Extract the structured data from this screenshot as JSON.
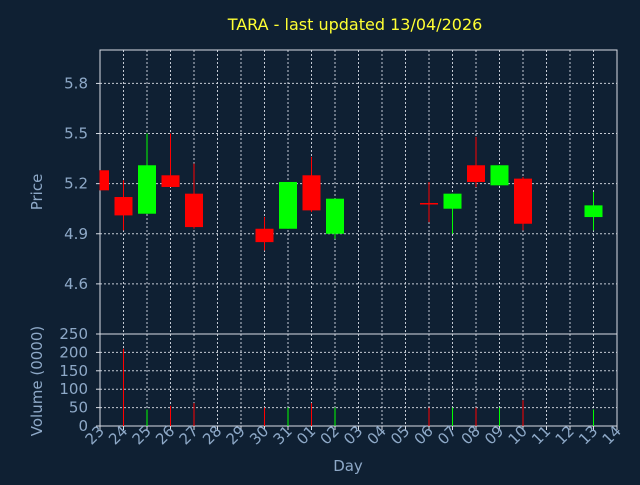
{
  "chart_data": {
    "type": "candlestick",
    "title": "TARA - last updated 13/04/2026",
    "xlabel": "Day",
    "price_panel": {
      "ylabel": "Price",
      "ylim": [
        4.3,
        6.0
      ],
      "yticks": [
        "4.6",
        "4.9",
        "5.2",
        "5.5",
        "5.8"
      ],
      "grid": true
    },
    "volume_panel": {
      "ylabel": "Volume (0000)",
      "ylim": [
        0,
        250
      ],
      "yticks": [
        "0",
        "50",
        "100",
        "150",
        "200",
        "250"
      ],
      "grid": true
    },
    "x_ticks": [
      "23",
      "24",
      "25",
      "26",
      "27",
      "28",
      "29",
      "30",
      "31",
      "01",
      "02",
      "03",
      "04",
      "05",
      "06",
      "07",
      "08",
      "09",
      "10",
      "11",
      "12",
      "13",
      "14"
    ],
    "candles": [
      {
        "day": "23",
        "open": 5.28,
        "high": 5.28,
        "low": 5.16,
        "close": 5.16,
        "volume": 0
      },
      {
        "day": "24",
        "open": 5.12,
        "high": 5.22,
        "low": 4.92,
        "close": 5.01,
        "volume": 210
      },
      {
        "day": "25",
        "open": 5.02,
        "high": 5.5,
        "low": 5.02,
        "close": 5.31,
        "volume": 45
      },
      {
        "day": "26",
        "open": 5.25,
        "high": 5.5,
        "low": 5.18,
        "close": 5.18,
        "volume": 55
      },
      {
        "day": "27",
        "open": 5.14,
        "high": 5.32,
        "low": 4.93,
        "close": 4.94,
        "volume": 62
      },
      {
        "day": "30",
        "open": 4.93,
        "high": 5.0,
        "low": 4.8,
        "close": 4.85,
        "volume": 50
      },
      {
        "day": "31",
        "open": 4.93,
        "high": 5.21,
        "low": 4.93,
        "close": 5.21,
        "volume": 50
      },
      {
        "day": "01",
        "open": 5.25,
        "high": 5.36,
        "low": 5.03,
        "close": 5.04,
        "volume": 62
      },
      {
        "day": "02",
        "open": 4.9,
        "high": 5.11,
        "low": 4.87,
        "close": 5.11,
        "volume": 50
      },
      {
        "day": "06",
        "open": 5.08,
        "high": 5.21,
        "low": 4.97,
        "close": 5.08,
        "volume": 50
      },
      {
        "day": "07",
        "open": 5.05,
        "high": 5.14,
        "low": 4.9,
        "close": 5.14,
        "volume": 50
      },
      {
        "day": "08",
        "open": 5.31,
        "high": 5.48,
        "low": 5.18,
        "close": 5.21,
        "volume": 50
      },
      {
        "day": "09",
        "open": 5.19,
        "high": 5.31,
        "low": 5.19,
        "close": 5.31,
        "volume": 50
      },
      {
        "day": "10",
        "open": 5.23,
        "high": 5.24,
        "low": 4.92,
        "close": 4.96,
        "volume": 70
      },
      {
        "day": "13",
        "open": 5.0,
        "high": 5.15,
        "low": 4.92,
        "close": 5.07,
        "volume": 45
      }
    ],
    "colors": {
      "background": "#0f2033",
      "title": "#ffff33",
      "text": "#8ea9c8",
      "grid": "#d8dde6",
      "up": "#00ff00",
      "down": "#ff0000"
    }
  }
}
